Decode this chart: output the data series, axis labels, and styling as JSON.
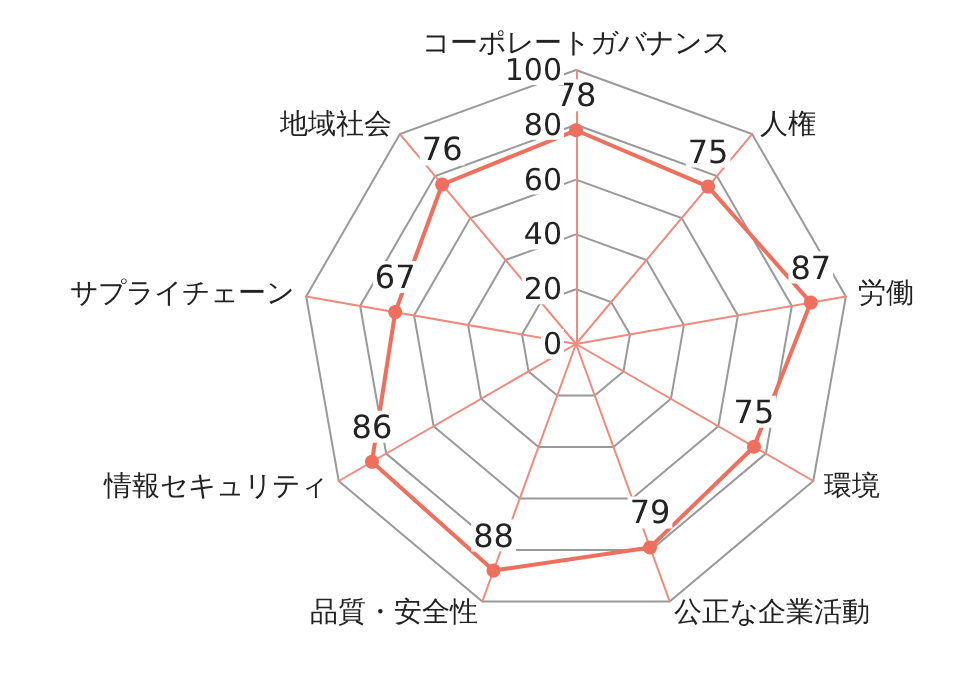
{
  "chart_data": {
    "type": "radar",
    "categories": [
      "コーポレートガバナンス",
      "人権",
      "労働",
      "環境",
      "公正な企業活動",
      "品質・安全性",
      "情報セキュリティ",
      "サプライチェーン",
      "地域社会"
    ],
    "series": [
      {
        "color": "#ef6f5e",
        "values": [
          78,
          75,
          87,
          75,
          79,
          88,
          86,
          67,
          76
        ]
      }
    ],
    "ylim": [
      0,
      100
    ],
    "yticks": [
      0,
      20,
      40,
      60,
      80,
      100
    ],
    "grid": true,
    "marker": "circle",
    "data_labels": true
  }
}
